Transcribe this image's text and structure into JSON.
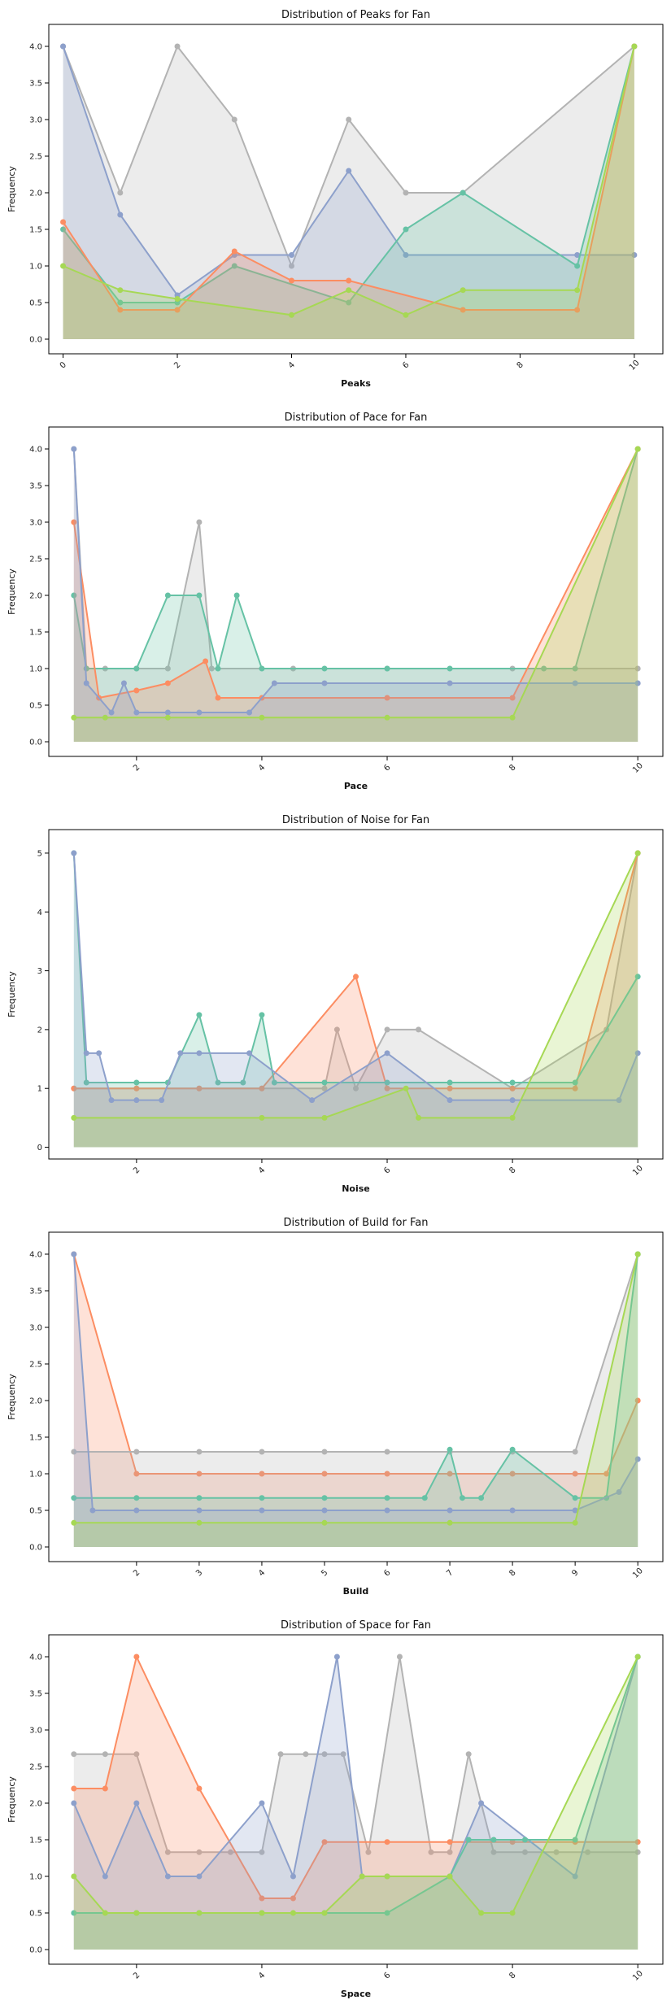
{
  "chart_data": [
    {
      "type": "area",
      "title": "Distribution of Peaks for Fan",
      "xlabel": "Peaks",
      "ylabel": "Frequency",
      "xlim": [
        -0.25,
        10.5
      ],
      "ylim": [
        -0.2,
        4.3
      ],
      "xticks": [
        "0",
        "2",
        "4",
        "6",
        "8",
        "10"
      ],
      "yticks": [
        "0.0",
        "0.5",
        "1.0",
        "1.5",
        "2.0",
        "2.5",
        "3.0",
        "3.5",
        "4.0"
      ],
      "grid": false,
      "series": [
        {
          "color": "#b3b3b3",
          "x": [
            0,
            1,
            2,
            3,
            4,
            5,
            6,
            7,
            10
          ],
          "values": [
            4,
            2,
            4,
            3,
            1,
            3,
            2,
            2,
            4
          ]
        },
        {
          "color": "#8da0cb",
          "x": [
            0,
            1,
            2,
            3,
            4,
            5,
            6,
            9,
            10
          ],
          "values": [
            4,
            1.7,
            0.6,
            1.15,
            1.15,
            2.3,
            1.15,
            1.15,
            1.15
          ]
        },
        {
          "color": "#66c2a5",
          "x": [
            0,
            1,
            2,
            3,
            5,
            6,
            7,
            9,
            10
          ],
          "values": [
            1.5,
            0.5,
            0.5,
            1,
            0.5,
            1.5,
            2,
            1,
            4
          ]
        },
        {
          "color": "#fc8d62",
          "x": [
            0,
            1,
            2,
            3,
            4,
            5,
            7,
            9,
            10
          ],
          "values": [
            1.6,
            0.4,
            0.4,
            1.2,
            0.8,
            0.8,
            0.4,
            0.4,
            4
          ]
        },
        {
          "color": "#a6d854",
          "x": [
            0,
            1,
            2,
            4,
            5,
            6,
            7,
            9,
            10
          ],
          "values": [
            1,
            0.67,
            0.55,
            0.33,
            0.67,
            0.33,
            0.67,
            0.67,
            4
          ]
        }
      ]
    },
    {
      "type": "area",
      "title": "Distribution of Pace for Fan",
      "xlabel": "Pace",
      "ylabel": "Frequency",
      "xlim": [
        0.6,
        10.4
      ],
      "ylim": [
        -0.2,
        4.3
      ],
      "xticks": [
        "2",
        "4",
        "6",
        "8",
        "10"
      ],
      "yticks": [
        "0.0",
        "0.5",
        "1.0",
        "1.5",
        "2.0",
        "2.5",
        "3.0",
        "3.5",
        "4.0"
      ],
      "grid": false,
      "series": [
        {
          "color": "#b3b3b3",
          "x": [
            1,
            1.2,
            1.5,
            2,
            2.5,
            3,
            3.2,
            4.5,
            6,
            8,
            10
          ],
          "values": [
            4,
            1,
            1,
            1,
            1,
            3,
            1,
            1,
            1,
            1,
            1
          ]
        },
        {
          "color": "#66c2a5",
          "x": [
            1,
            1.2,
            2,
            2.5,
            3,
            3.3,
            3.6,
            4,
            5,
            6,
            7,
            8.5,
            9,
            10
          ],
          "values": [
            2,
            1,
            1,
            2,
            2,
            1,
            2,
            1,
            1,
            1,
            1,
            1,
            1,
            4
          ]
        },
        {
          "color": "#fc8d62",
          "x": [
            1,
            1.4,
            2,
            2.5,
            3.1,
            3.3,
            4,
            6,
            8,
            10
          ],
          "values": [
            3,
            0.6,
            0.7,
            0.8,
            1.1,
            0.6,
            0.6,
            0.6,
            0.6,
            4
          ]
        },
        {
          "color": "#8da0cb",
          "x": [
            1,
            1.2,
            1.6,
            1.8,
            2,
            2.5,
            3,
            3.8,
            4.2,
            5,
            7,
            9,
            10
          ],
          "values": [
            4,
            0.8,
            0.4,
            0.8,
            0.4,
            0.4,
            0.4,
            0.4,
            0.8,
            0.8,
            0.8,
            0.8,
            0.8
          ]
        },
        {
          "color": "#a6d854",
          "x": [
            1,
            1.5,
            2.5,
            4,
            6,
            8,
            10
          ],
          "values": [
            0.33,
            0.33,
            0.33,
            0.33,
            0.33,
            0.33,
            4
          ]
        }
      ]
    },
    {
      "type": "area",
      "title": "Distribution of Noise for Fan",
      "xlabel": "Noise",
      "ylabel": "Frequency",
      "xlim": [
        0.6,
        10.4
      ],
      "ylim": [
        -0.2,
        5.4
      ],
      "xticks": [
        "2",
        "4",
        "6",
        "8",
        "10"
      ],
      "yticks": [
        "0",
        "1",
        "2",
        "3",
        "4",
        "5"
      ],
      "grid": false,
      "series": [
        {
          "color": "#b3b3b3",
          "x": [
            1,
            2,
            3,
            4,
            5,
            5.2,
            5.5,
            6,
            6.5,
            8,
            9.5,
            10
          ],
          "values": [
            1,
            1,
            1,
            1,
            1,
            2,
            1,
            2,
            2,
            1,
            2,
            5
          ]
        },
        {
          "color": "#fc8d62",
          "x": [
            1,
            2,
            3,
            4,
            5.5,
            6,
            7,
            8,
            9,
            10
          ],
          "values": [
            1,
            1,
            1,
            1,
            2.9,
            1,
            1,
            1,
            1,
            5
          ]
        },
        {
          "color": "#66c2a5",
          "x": [
            1,
            1.2,
            2,
            2.5,
            3,
            3.3,
            3.7,
            4,
            4.2,
            5,
            6,
            7,
            8,
            9,
            10
          ],
          "values": [
            5,
            1.1,
            1.1,
            1.1,
            2.25,
            1.1,
            1.1,
            2.25,
            1.1,
            1.1,
            1.1,
            1.1,
            1.1,
            1.1,
            2.9
          ]
        },
        {
          "color": "#8da0cb",
          "x": [
            1,
            1.2,
            1.4,
            1.6,
            2,
            2.4,
            2.7,
            3,
            3.8,
            4.8,
            6,
            7,
            8,
            9.7,
            10
          ],
          "values": [
            5,
            1.6,
            1.6,
            0.8,
            0.8,
            0.8,
            1.6,
            1.6,
            1.6,
            0.8,
            1.6,
            0.8,
            0.8,
            0.8,
            1.6
          ]
        },
        {
          "color": "#a6d854",
          "x": [
            1,
            4,
            5,
            6.3,
            6.5,
            8,
            10
          ],
          "values": [
            0.5,
            0.5,
            0.5,
            1,
            0.5,
            0.5,
            5
          ]
        }
      ]
    },
    {
      "type": "area",
      "title": "Distribution of Build for Fan",
      "xlabel": "Build",
      "ylabel": "Frequency",
      "xlim": [
        0.6,
        10.4
      ],
      "ylim": [
        -0.2,
        4.3
      ],
      "xticks": [
        "2",
        "3",
        "4",
        "5",
        "6",
        "7",
        "8",
        "9",
        "10"
      ],
      "yticks": [
        "0.0",
        "0.5",
        "1.0",
        "1.5",
        "2.0",
        "2.5",
        "3.0",
        "3.5",
        "4.0"
      ],
      "grid": false,
      "series": [
        {
          "color": "#fc8d62",
          "x": [
            1,
            2,
            3,
            4,
            5,
            6,
            7,
            8,
            9,
            9.5,
            10
          ],
          "values": [
            4,
            1,
            1,
            1,
            1,
            1,
            1,
            1,
            1,
            1,
            2
          ]
        },
        {
          "color": "#b3b3b3",
          "x": [
            1,
            2,
            3,
            4,
            5,
            6,
            7,
            8,
            9,
            10
          ],
          "values": [
            1.3,
            1.3,
            1.3,
            1.3,
            1.3,
            1.3,
            1.3,
            1.3,
            1.3,
            4
          ]
        },
        {
          "color": "#66c2a5",
          "x": [
            1,
            2,
            3,
            4,
            5,
            6,
            6.6,
            7,
            7.2,
            7.5,
            8,
            9,
            9.5,
            10
          ],
          "values": [
            0.67,
            0.67,
            0.67,
            0.67,
            0.67,
            0.67,
            0.67,
            1.33,
            0.67,
            0.67,
            1.33,
            0.67,
            0.67,
            4
          ]
        },
        {
          "color": "#8da0cb",
          "x": [
            1,
            1.3,
            2,
            3,
            4,
            5,
            6,
            7,
            8,
            9,
            9.7,
            10
          ],
          "values": [
            4,
            0.5,
            0.5,
            0.5,
            0.5,
            0.5,
            0.5,
            0.5,
            0.5,
            0.5,
            0.75,
            1.2
          ]
        },
        {
          "color": "#a6d854",
          "x": [
            1,
            3,
            5,
            7,
            9,
            10
          ],
          "values": [
            0.33,
            0.33,
            0.33,
            0.33,
            0.33,
            4
          ]
        }
      ]
    },
    {
      "type": "area",
      "title": "Distribution of Space for Fan",
      "xlabel": "Space",
      "ylabel": "Frequency",
      "xlim": [
        0.6,
        10.4
      ],
      "ylim": [
        -0.2,
        4.3
      ],
      "xticks": [
        "2",
        "4",
        "6",
        "8",
        "10"
      ],
      "yticks": [
        "0.0",
        "0.5",
        "1.0",
        "1.5",
        "2.0",
        "2.5",
        "3.0",
        "3.5",
        "4.0"
      ],
      "grid": false,
      "series": [
        {
          "color": "#b3b3b3",
          "x": [
            1,
            1.5,
            2,
            2.5,
            3,
            3.5,
            4,
            4.3,
            4.7,
            5,
            5.3,
            5.7,
            6.2,
            6.7,
            7,
            7.3,
            7.7,
            8.2,
            8.7,
            9.2,
            10
          ],
          "values": [
            2.67,
            2.67,
            2.67,
            1.33,
            1.33,
            1.33,
            1.33,
            2.67,
            2.67,
            2.67,
            2.67,
            1.33,
            4,
            1.33,
            1.33,
            2.67,
            1.33,
            1.33,
            1.33,
            1.33,
            1.33
          ]
        },
        {
          "color": "#fc8d62",
          "x": [
            1,
            1.5,
            2,
            3,
            4,
            4.5,
            5,
            6,
            7,
            8,
            9,
            10
          ],
          "values": [
            2.2,
            2.2,
            4,
            2.2,
            0.7,
            0.7,
            1.47,
            1.47,
            1.47,
            1.47,
            1.47,
            1.47
          ]
        },
        {
          "color": "#8da0cb",
          "x": [
            1,
            1.5,
            2,
            2.5,
            3,
            4,
            4.5,
            5.2,
            5.6,
            6,
            7,
            7.5,
            9,
            10
          ],
          "values": [
            2,
            1,
            2,
            1,
            1,
            2,
            1,
            4,
            1,
            1,
            1,
            2,
            1,
            4
          ]
        },
        {
          "color": "#66c2a5",
          "x": [
            1,
            2,
            3,
            4,
            5,
            6,
            7,
            7.3,
            7.7,
            8.2,
            9,
            10
          ],
          "values": [
            0.5,
            0.5,
            0.5,
            0.5,
            0.5,
            0.5,
            1,
            1.5,
            1.5,
            1.5,
            1.5,
            4
          ]
        },
        {
          "color": "#a6d854",
          "x": [
            1,
            1.5,
            2,
            3,
            4,
            4.5,
            5,
            5.6,
            6,
            7,
            7.5,
            8,
            10
          ],
          "values": [
            1,
            0.5,
            0.5,
            0.5,
            0.5,
            0.5,
            0.5,
            1,
            1,
            1,
            0.5,
            0.5,
            4
          ]
        }
      ]
    }
  ]
}
